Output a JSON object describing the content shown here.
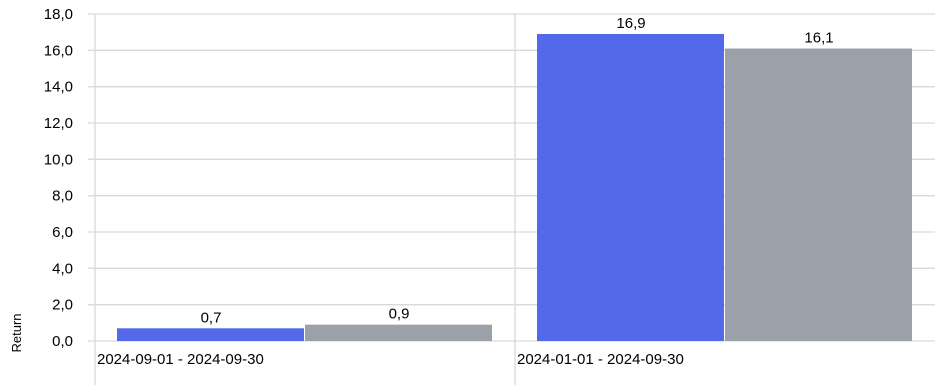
{
  "chart_data": {
    "type": "bar",
    "title": "",
    "xlabel": "",
    "ylabel": "Return",
    "ylim": [
      0,
      18
    ],
    "yticks": [
      "0,0",
      "2,0",
      "4,0",
      "6,0",
      "8,0",
      "10,0",
      "12,0",
      "14,0",
      "16,0",
      "18,0"
    ],
    "categories": [
      "2024-09-01 - 2024-09-30",
      "2024-01-01 - 2024-09-30"
    ],
    "series": [
      {
        "values": [
          0.7,
          16.9
        ],
        "labels": [
          "0,7",
          "16,9"
        ],
        "color": "#5469EA"
      },
      {
        "values": [
          0.9,
          16.1
        ],
        "labels": [
          "0,9",
          "16,1"
        ],
        "color": "#9CA0A8"
      }
    ],
    "grid": true,
    "legend": "none"
  }
}
